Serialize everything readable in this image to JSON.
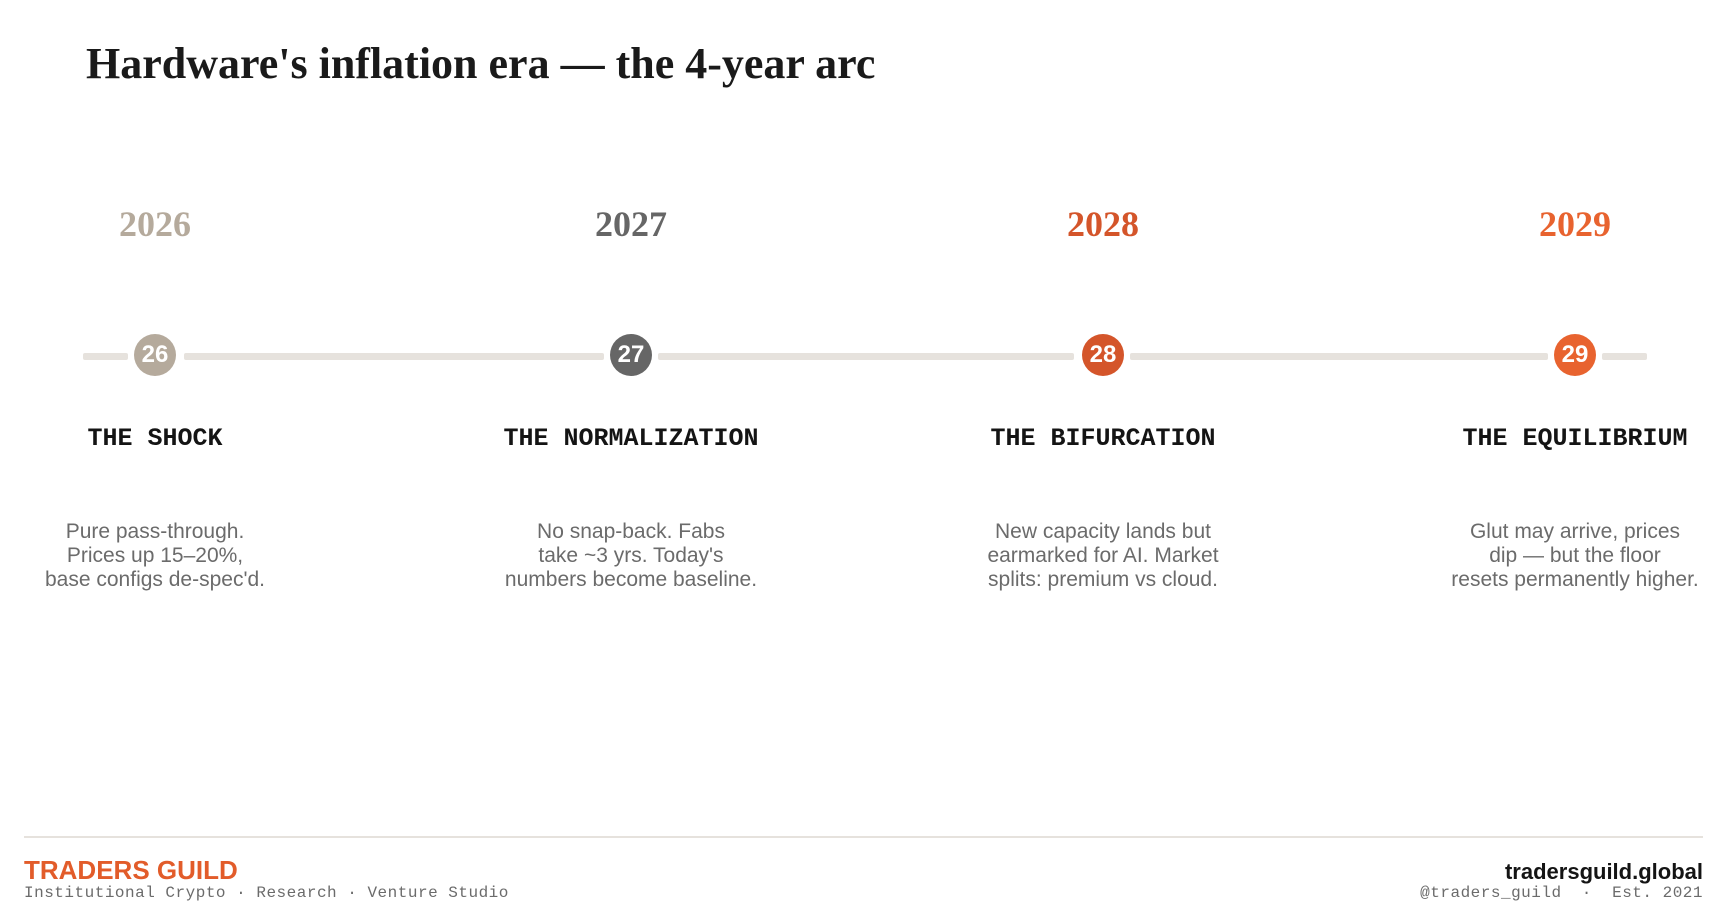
{
  "title": "Hardware's inflation era — the 4-year arc",
  "colors": {
    "track": "#e6e2dd",
    "accent": "#e25c2a"
  },
  "stages": [
    {
      "year": "2026",
      "marker": "26",
      "phase": "THE SHOCK",
      "description": [
        "Pure pass-through.",
        "Prices up 15–20%,",
        "base configs de-spec'd."
      ],
      "year_color": "#b5aa9c",
      "marker_color": "#b5aa9c"
    },
    {
      "year": "2027",
      "marker": "27",
      "phase": "THE NORMALIZATION",
      "description": [
        "No snap-back. Fabs",
        "take ~3 yrs. Today's",
        "numbers become baseline."
      ],
      "year_color": "#666666",
      "marker_color": "#666666"
    },
    {
      "year": "2028",
      "marker": "28",
      "phase": "THE BIFURCATION",
      "description": [
        "New capacity lands but",
        "earmarked for AI. Market",
        "splits: premium vs cloud."
      ],
      "year_color": "#d4552a",
      "marker_color": "#d4552a"
    },
    {
      "year": "2029",
      "marker": "29",
      "phase": "THE EQUILIBRIUM",
      "description": [
        "Glut may arrive, prices",
        "dip — but the floor",
        "resets permanently higher."
      ],
      "year_color": "#e8632f",
      "marker_color": "#e8632f"
    }
  ],
  "footer": {
    "brand": "TRADERS GUILD",
    "tagline": "Institutional Crypto · Research · Venture Studio",
    "site": "tradersguild.global",
    "handle": "@traders_guild  ·  Est. 2021"
  }
}
